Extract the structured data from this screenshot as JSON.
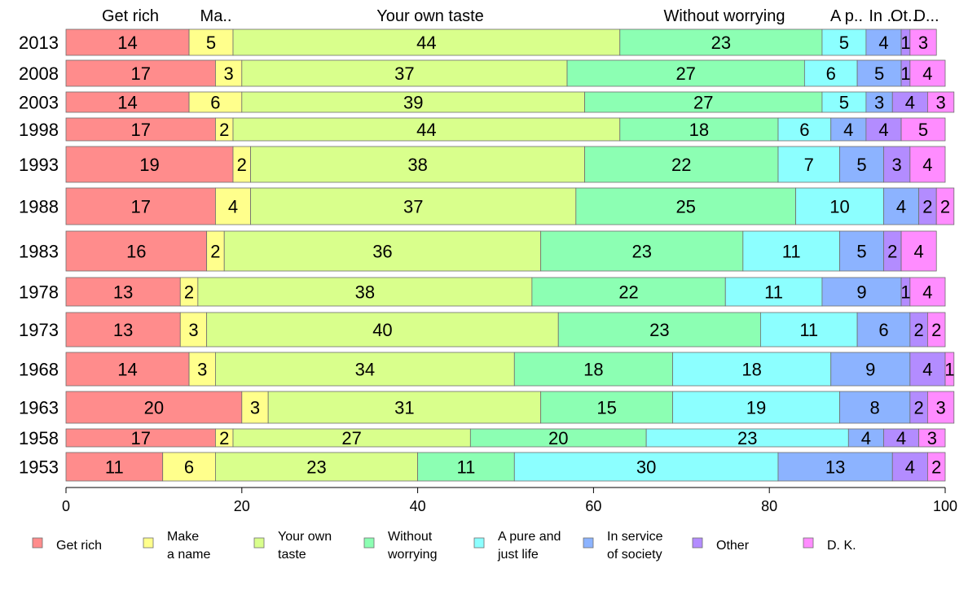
{
  "chart_data": {
    "type": "bar",
    "orientation": "horizontal",
    "stacked": true,
    "xlim": [
      0,
      100
    ],
    "xticks": [
      0,
      20,
      40,
      60,
      80,
      100
    ],
    "grid": false,
    "legend_position": "bottom",
    "top_labels": [
      "Get rich",
      "Ma..",
      "Your own taste",
      "Without worrying",
      "A p..",
      "In ..",
      "Ot..",
      "D..."
    ],
    "categories": [
      "2013",
      "2008",
      "2003",
      "1998",
      "1993",
      "1988",
      "1983",
      "1978",
      "1973",
      "1968",
      "1963",
      "1958",
      "1953"
    ],
    "series": [
      {
        "name": "Get rich",
        "color": "#ff8c8c",
        "values": [
          14,
          17,
          14,
          17,
          19,
          17,
          16,
          13,
          13,
          14,
          20,
          17,
          11
        ]
      },
      {
        "name": "Make a name",
        "color": "#ffff8c",
        "values": [
          5,
          3,
          6,
          2,
          2,
          4,
          2,
          2,
          3,
          3,
          3,
          2,
          6
        ]
      },
      {
        "name": "Your own taste",
        "color": "#d9ff8c",
        "values": [
          44,
          37,
          39,
          44,
          38,
          37,
          36,
          38,
          40,
          34,
          31,
          27,
          23
        ]
      },
      {
        "name": "Without worrying",
        "color": "#8cffb3",
        "values": [
          23,
          27,
          27,
          18,
          22,
          25,
          23,
          22,
          23,
          18,
          15,
          20,
          11
        ]
      },
      {
        "name": "A pure and just life",
        "color": "#8cffff",
        "values": [
          5,
          6,
          5,
          6,
          7,
          10,
          11,
          11,
          11,
          18,
          19,
          23,
          30
        ]
      },
      {
        "name": "In service of society",
        "color": "#8cb3ff",
        "values": [
          4,
          5,
          3,
          4,
          5,
          4,
          5,
          9,
          6,
          9,
          8,
          4,
          13
        ]
      },
      {
        "name": "Other",
        "color": "#b38cff",
        "values": [
          1,
          1,
          4,
          4,
          3,
          2,
          2,
          1,
          2,
          4,
          2,
          4,
          4
        ]
      },
      {
        "name": "D. K.",
        "color": "#ff8cff",
        "values": [
          3,
          4,
          3,
          5,
          4,
          2,
          4,
          4,
          2,
          1,
          3,
          3,
          2
        ]
      }
    ],
    "legend": [
      {
        "line1": "Get rich",
        "line2": ""
      },
      {
        "line1": "Make",
        "line2": "a name"
      },
      {
        "line1": "Your own",
        "line2": "taste"
      },
      {
        "line1": "Without",
        "line2": "worrying"
      },
      {
        "line1": "A pure and",
        "line2": "just life"
      },
      {
        "line1": "In service",
        "line2": "of society"
      },
      {
        "line1": "Other",
        "line2": ""
      },
      {
        "line1": "D. K.",
        "line2": ""
      }
    ]
  }
}
